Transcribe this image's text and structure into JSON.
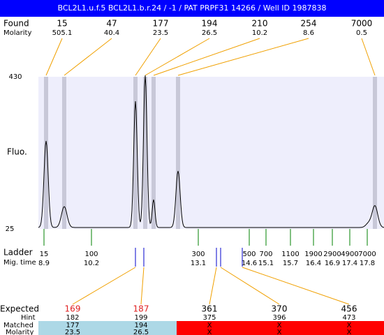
{
  "header": {
    "title": "BCL2L1.u.f.5  BCL2L1.b.r.24 / -1 / PAT PRPF31 14266 / Well ID 1987838"
  },
  "found": {
    "label": "Found",
    "molarity_label": "Molarity",
    "peaks": [
      {
        "size": 15,
        "molarity": 505.1
      },
      {
        "size": 47,
        "molarity": 40.4
      },
      {
        "size": 177,
        "molarity": 23.5
      },
      {
        "size": 194,
        "molarity": 26.5
      },
      {
        "size": 210,
        "molarity": 10.2
      },
      {
        "size": 254,
        "molarity": 8.6
      },
      {
        "size": 7000,
        "molarity": 0.5
      }
    ]
  },
  "plot": {
    "y_max": 430,
    "y_min": 25,
    "y_label": "Fluo."
  },
  "ladder": {
    "label": "Ladder",
    "mig_label": "Mig. time",
    "bands": [
      {
        "size": 15,
        "time": 8.9
      },
      {
        "size": 100,
        "time": 10.2
      },
      {
        "size": 300,
        "time": 13.1
      },
      {
        "size": 500,
        "time": 14.6
      },
      {
        "size": 700,
        "time": 15.1
      },
      {
        "size": 1100,
        "time": 15.7
      },
      {
        "size": 1900,
        "time": 16.4
      },
      {
        "size": 2900,
        "time": 16.9
      },
      {
        "size": 4900,
        "time": 17.4
      },
      {
        "size": 7000,
        "time": 17.8
      }
    ]
  },
  "expected": {
    "label": "Expected",
    "hint_label": "Hint",
    "matched_label": "Matched",
    "molarity_label": "Molarity",
    "items": [
      {
        "size": 169,
        "hint": 182,
        "matched": 177,
        "molarity": 23.5,
        "color": "#e02020"
      },
      {
        "size": 187,
        "hint": 199,
        "matched": 194,
        "molarity": 26.5,
        "color": "#e02020"
      },
      {
        "size": 361,
        "hint": 375,
        "matched": "X",
        "molarity": "X",
        "color": "#000000"
      },
      {
        "size": 370,
        "hint": 396,
        "matched": "X",
        "molarity": "X",
        "color": "#000000"
      },
      {
        "size": 456,
        "hint": 473,
        "matched": "X",
        "molarity": "X",
        "color": "#000000"
      }
    ]
  }
}
